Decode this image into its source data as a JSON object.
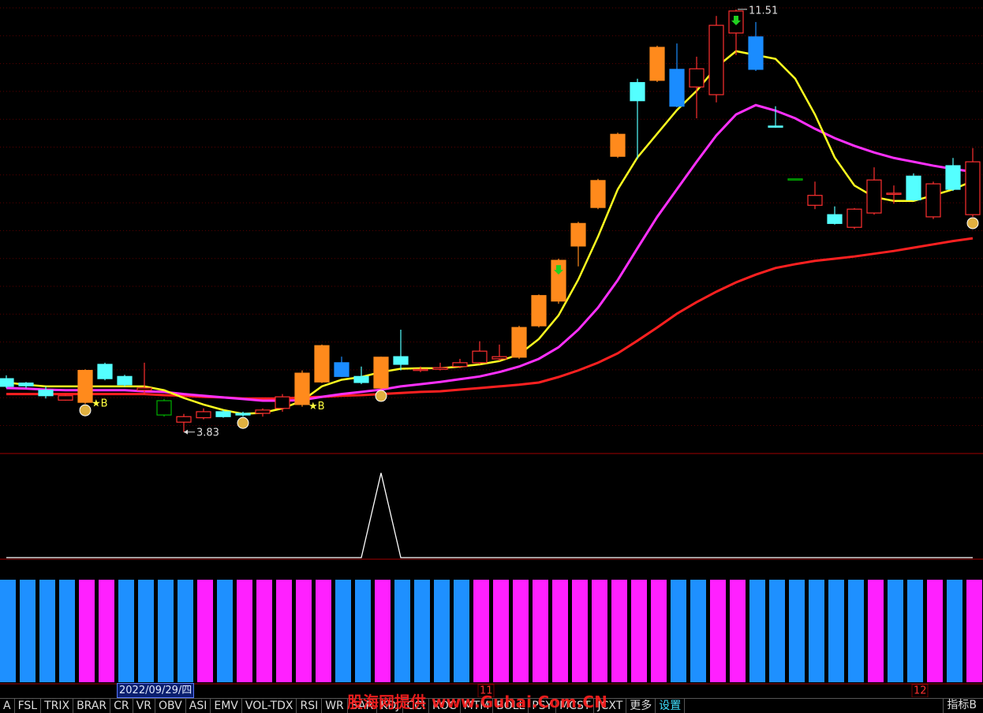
{
  "chart_data": [
    {
      "type": "candlestick",
      "open": [
        4.8,
        4.72,
        4.59,
        4.41,
        4.37,
        5.06,
        4.84,
        4.59,
        4.14,
        4.01,
        4.09,
        4.2,
        4.17,
        4.17,
        4.26,
        4.33,
        4.74,
        5.09,
        4.84,
        4.63,
        5.2,
        4.95,
        4.97,
        5.02,
        5.09,
        5.16,
        5.19,
        5.76,
        6.21,
        7.21,
        7.91,
        8.84,
        10.18,
        10.22,
        10.42,
        10.1,
        9.96,
        11.08,
        11.01,
        9.39,
        8.43,
        7.95,
        7.78,
        7.55,
        7.81,
        8.15,
        8.48,
        7.74,
        8.67,
        7.78
      ],
      "high": [
        4.86,
        4.74,
        4.66,
        4.52,
        4.97,
        5.09,
        4.87,
        5.09,
        4.43,
        4.16,
        4.26,
        4.23,
        4.2,
        4.26,
        4.52,
        4.95,
        5.42,
        5.2,
        5.02,
        5.2,
        5.69,
        5.02,
        5.09,
        5.16,
        5.48,
        5.42,
        5.76,
        6.33,
        6.98,
        7.65,
        8.43,
        9.27,
        10.25,
        10.85,
        10.89,
        10.65,
        11.39,
        11.51,
        11.28,
        9.75,
        8.43,
        8.38,
        7.93,
        7.9,
        8.64,
        8.31,
        8.53,
        8.38,
        8.81,
        8.99
      ],
      "low": [
        4.63,
        4.63,
        4.44,
        4.4,
        4.34,
        4.77,
        4.66,
        4.51,
        4.11,
        3.83,
        4.06,
        4.09,
        4.11,
        4.11,
        4.2,
        4.29,
        4.72,
        4.83,
        4.7,
        4.6,
        4.95,
        4.92,
        4.95,
        4.99,
        5.06,
        5.12,
        5.16,
        5.73,
        6.16,
        6.84,
        7.88,
        8.81,
        8.79,
        10.19,
        9.73,
        9.53,
        9.82,
        10.68,
        10.39,
        9.36,
        8.41,
        7.88,
        7.6,
        7.52,
        7.78,
        7.98,
        8.03,
        7.7,
        8.21,
        7.74
      ],
      "close": [
        4.66,
        4.67,
        4.49,
        4.49,
        4.95,
        4.8,
        4.69,
        4.63,
        4.4,
        4.11,
        4.2,
        4.11,
        4.14,
        4.23,
        4.47,
        4.9,
        5.4,
        4.84,
        4.73,
        5.19,
        5.06,
        4.97,
        5.0,
        5.09,
        5.3,
        5.2,
        5.73,
        6.31,
        6.95,
        7.62,
        8.4,
        9.24,
        9.85,
        10.82,
        9.75,
        10.43,
        11.22,
        11.48,
        10.42,
        9.37,
        8.41,
        8.13,
        7.62,
        7.88,
        8.41,
        8.17,
        8.05,
        8.34,
        8.24,
        8.74
      ],
      "colors": [
        "#54ffff",
        "#54ffff",
        "#54ffff",
        "#ff3030",
        "#ff8a1c",
        "#54ffff",
        "#54ffff",
        "#ff3030",
        "#00b000",
        "#ff3030",
        "#ff3030",
        "#54ffff",
        "#54ffff",
        "#ff3030",
        "#ff3030",
        "#ff8a1c",
        "#ff8a1c",
        "#1a8cff",
        "#54ffff",
        "#ff8a1c",
        "#54ffff",
        "#ff3030",
        "#ff3030",
        "#ff3030",
        "#ff3030",
        "#ff3030",
        "#ff8a1c",
        "#ff8a1c",
        "#ff8a1c",
        "#ff8a1c",
        "#ff8a1c",
        "#ff8a1c",
        "#54ffff",
        "#ff8a1c",
        "#1a8cff",
        "#ff3030",
        "#ff3030",
        "#ff3030",
        "#1a8cff",
        "#54ffff",
        "#00b000",
        "#ff3030",
        "#54ffff",
        "#ff3030",
        "#ff3030",
        "#ff3030",
        "#54ffff",
        "#ff3030",
        "#54ffff",
        "#ff3030"
      ],
      "ylim": [
        3.44,
        11.68
      ],
      "categories": [
        null,
        null,
        null,
        null,
        null,
        null,
        null,
        null,
        null,
        null,
        null,
        null,
        null,
        null,
        null,
        null,
        null,
        null,
        null,
        null,
        null,
        null,
        null,
        null,
        "11",
        null,
        null,
        null,
        null,
        null,
        null,
        null,
        null,
        null,
        null,
        null,
        null,
        null,
        null,
        null,
        null,
        null,
        null,
        null,
        null,
        null,
        "12",
        null,
        null,
        null
      ],
      "signal_labels": [
        null,
        null,
        null,
        null,
        "★B",
        null,
        null,
        null,
        null,
        null,
        null,
        null,
        null,
        null,
        null,
        "★B",
        null,
        null,
        null,
        null,
        null,
        null,
        null,
        null,
        null,
        null,
        null,
        null,
        null,
        null,
        null,
        null,
        null,
        null,
        null,
        null,
        null,
        null,
        null,
        null,
        null,
        null,
        null,
        null,
        null,
        null,
        null,
        null,
        null,
        null
      ],
      "series": [
        {
          "color": "#ff2020",
          "values": [
            4.52,
            4.52,
            4.52,
            4.52,
            4.52,
            4.52,
            4.52,
            4.52,
            4.5,
            4.49,
            4.47,
            4.46,
            4.44,
            4.44,
            4.44,
            4.46,
            4.47,
            4.49,
            4.5,
            4.52,
            4.54,
            4.56,
            4.57,
            4.6,
            4.63,
            4.66,
            4.69,
            4.73,
            4.83,
            4.95,
            5.09,
            5.26,
            5.49,
            5.73,
            5.98,
            6.19,
            6.38,
            6.55,
            6.69,
            6.81,
            6.88,
            6.94,
            6.98,
            7.02,
            7.07,
            7.12,
            7.18,
            7.24,
            7.3,
            7.35
          ]
        },
        {
          "color": "#ff30ff",
          "values": [
            4.63,
            4.62,
            4.6,
            4.59,
            4.59,
            4.59,
            4.59,
            4.57,
            4.56,
            4.52,
            4.49,
            4.46,
            4.43,
            4.4,
            4.4,
            4.41,
            4.47,
            4.52,
            4.56,
            4.6,
            4.66,
            4.7,
            4.74,
            4.79,
            4.84,
            4.92,
            5.02,
            5.16,
            5.37,
            5.69,
            6.09,
            6.59,
            7.17,
            7.74,
            8.24,
            8.74,
            9.22,
            9.6,
            9.77,
            9.67,
            9.53,
            9.34,
            9.17,
            9.03,
            8.91,
            8.81,
            8.74,
            8.67,
            8.61,
            8.56
          ]
        },
        {
          "color": "#ffff20",
          "values": [
            4.73,
            4.69,
            4.66,
            4.66,
            4.66,
            4.66,
            4.66,
            4.66,
            4.59,
            4.45,
            4.33,
            4.23,
            4.16,
            4.18,
            4.26,
            4.4,
            4.66,
            4.78,
            4.83,
            4.92,
            4.98,
            4.99,
            4.99,
            5.02,
            5.06,
            5.12,
            5.24,
            5.52,
            5.95,
            6.6,
            7.38,
            8.24,
            8.82,
            9.25,
            9.68,
            10.03,
            10.46,
            10.75,
            10.68,
            10.61,
            10.25,
            9.6,
            8.82,
            8.31,
            8.1,
            8.03,
            8.03,
            8.13,
            8.24,
            8.39
          ]
        }
      ]
    },
    {
      "type": "line",
      "color": "#ffffff",
      "ylim": [
        0,
        1.23
      ],
      "values": [
        0,
        0,
        0,
        0,
        0,
        0,
        0,
        0,
        0,
        0,
        0,
        0,
        0,
        0,
        0,
        0,
        0,
        0,
        0,
        1,
        0,
        0,
        0,
        0,
        0,
        0,
        0,
        0,
        0,
        0,
        0,
        0,
        0,
        0,
        0,
        0,
        0,
        0,
        0,
        0,
        0,
        0,
        0,
        0,
        0,
        0,
        0,
        0,
        0,
        0
      ]
    },
    {
      "type": "bar",
      "ylim": [
        0,
        1
      ],
      "values": [
        1,
        1,
        1,
        1,
        1,
        1,
        1,
        1,
        1,
        1,
        1,
        1,
        1,
        1,
        1,
        1,
        1,
        1,
        1,
        1,
        1,
        1,
        1,
        1,
        1,
        1,
        1,
        1,
        1,
        1,
        1,
        1,
        1,
        1,
        1,
        1,
        1,
        1,
        1,
        1,
        1,
        1,
        1,
        1,
        1,
        1,
        1,
        1,
        1,
        1
      ],
      "colors": [
        "#1e90ff",
        "#1e90ff",
        "#1e90ff",
        "#1e90ff",
        "#ff20ff",
        "#ff20ff",
        "#1e90ff",
        "#1e90ff",
        "#1e90ff",
        "#1e90ff",
        "#ff20ff",
        "#1e90ff",
        "#ff20ff",
        "#ff20ff",
        "#ff20ff",
        "#ff20ff",
        "#ff20ff",
        "#1e90ff",
        "#1e90ff",
        "#ff20ff",
        "#1e90ff",
        "#1e90ff",
        "#1e90ff",
        "#1e90ff",
        "#ff20ff",
        "#ff20ff",
        "#ff20ff",
        "#ff20ff",
        "#ff20ff",
        "#ff20ff",
        "#ff20ff",
        "#ff20ff",
        "#ff20ff",
        "#ff20ff",
        "#1e90ff",
        "#1e90ff",
        "#ff20ff",
        "#ff20ff",
        "#1e90ff",
        "#1e90ff",
        "#1e90ff",
        "#1e90ff",
        "#1e90ff",
        "#1e90ff",
        "#ff20ff",
        "#1e90ff",
        "#1e90ff",
        "#ff20ff",
        "#1e90ff",
        "#ff20ff"
      ]
    }
  ],
  "cursor_date": "2022/09/29/四",
  "toolbar": {
    "tabs": [
      "A",
      "FSL",
      "TRIX",
      "BRAR",
      "CR",
      "VR",
      "OBV",
      "ASI",
      "EMV",
      "VOL-TDX",
      "RSI",
      "WR",
      "SAR",
      "KDJ",
      "CCI",
      "ROC",
      "MTM",
      "BOLL",
      "PSY",
      "MCST",
      "JCXT",
      "更多",
      "设置"
    ],
    "right": "指标B"
  },
  "watermark": "股海网提供 www.Guhai.Com.CN"
}
